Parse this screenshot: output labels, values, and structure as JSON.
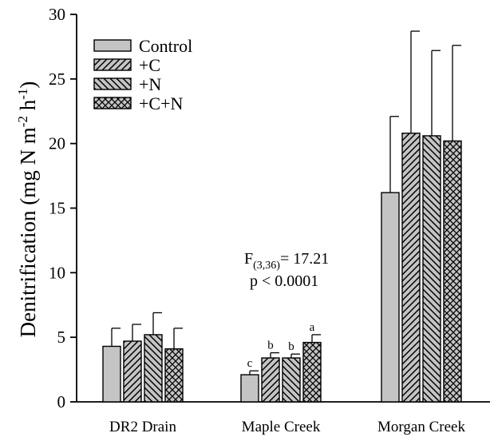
{
  "chart_data": {
    "type": "bar",
    "title": "",
    "xlabel": "",
    "ylabel": "Denitrification (mg N m",
    "ylabel_sup1": "-2",
    "ylabel_mid": " h",
    "ylabel_sup2": "-1",
    "ylabel_end": ")",
    "ylim": [
      0,
      30
    ],
    "yticks": [
      "0",
      "5",
      "10",
      "15",
      "20",
      "25",
      "30"
    ],
    "grid": false,
    "legend_position": "top-left",
    "categories": [
      "DR2 Drain",
      "Maple Creek",
      "Morgan Creek"
    ],
    "series": [
      {
        "name": "Control",
        "pattern": "solid-gray",
        "values": [
          4.3,
          2.1,
          16.2
        ],
        "errors": [
          1.4,
          0.3,
          5.9
        ]
      },
      {
        "name": "+C",
        "pattern": "forward-hatch",
        "values": [
          4.7,
          3.4,
          20.8
        ],
        "errors": [
          1.3,
          0.4,
          7.9
        ]
      },
      {
        "name": "+N",
        "pattern": "back-hatch",
        "values": [
          5.2,
          3.4,
          20.6
        ],
        "errors": [
          1.7,
          0.3,
          6.6
        ]
      },
      {
        "name": "+C+N",
        "pattern": "crosshatch",
        "values": [
          4.1,
          4.6,
          20.2
        ],
        "errors": [
          1.6,
          0.6,
          7.4
        ]
      }
    ],
    "significance_letters": {
      "category": "Maple Creek",
      "letters": [
        "c",
        "b",
        "b",
        "a"
      ]
    },
    "annotations": {
      "f_stat_main": "F",
      "f_stat_sub": "(3,36)",
      "f_stat_value": "= 17.21",
      "p_value": "p < 0.0001"
    },
    "colors": {
      "bar_fill": "#c4c4c4",
      "outline": "#000000"
    }
  }
}
